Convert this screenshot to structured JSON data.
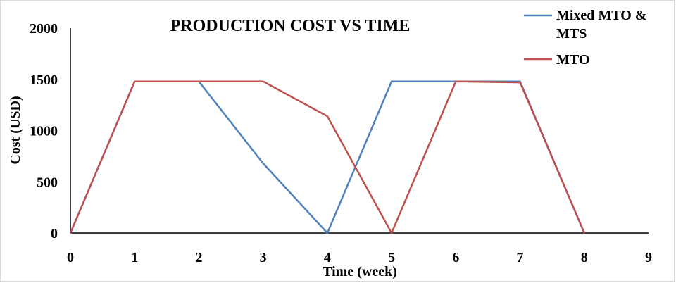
{
  "chart_data": {
    "type": "line",
    "title": "PRODUCTION COST VS TIME",
    "xlabel": "Time (week)",
    "ylabel": "Cost (USD)",
    "xlim": [
      0,
      9
    ],
    "ylim": [
      0,
      2000
    ],
    "x_ticks": [
      "0",
      "1",
      "2",
      "3",
      "4",
      "5",
      "6",
      "7",
      "8",
      "9"
    ],
    "y_ticks": [
      "0",
      "500",
      "1000",
      "1500",
      "2000"
    ],
    "grid": false,
    "legend_position": "top-right",
    "series": [
      {
        "name": "Mixed MTO & MTS",
        "color": "#4f81bd",
        "x": [
          0,
          1,
          2,
          3,
          4,
          5,
          6,
          7,
          8
        ],
        "y": [
          0,
          1480,
          1480,
          680,
          0,
          1480,
          1480,
          1480,
          0
        ]
      },
      {
        "name": "MTO",
        "color": "#c0504d",
        "x": [
          0,
          1,
          2,
          3,
          4,
          5,
          6,
          7,
          8
        ],
        "y": [
          0,
          1480,
          1480,
          1480,
          1140,
          0,
          1480,
          1470,
          0
        ]
      }
    ]
  }
}
